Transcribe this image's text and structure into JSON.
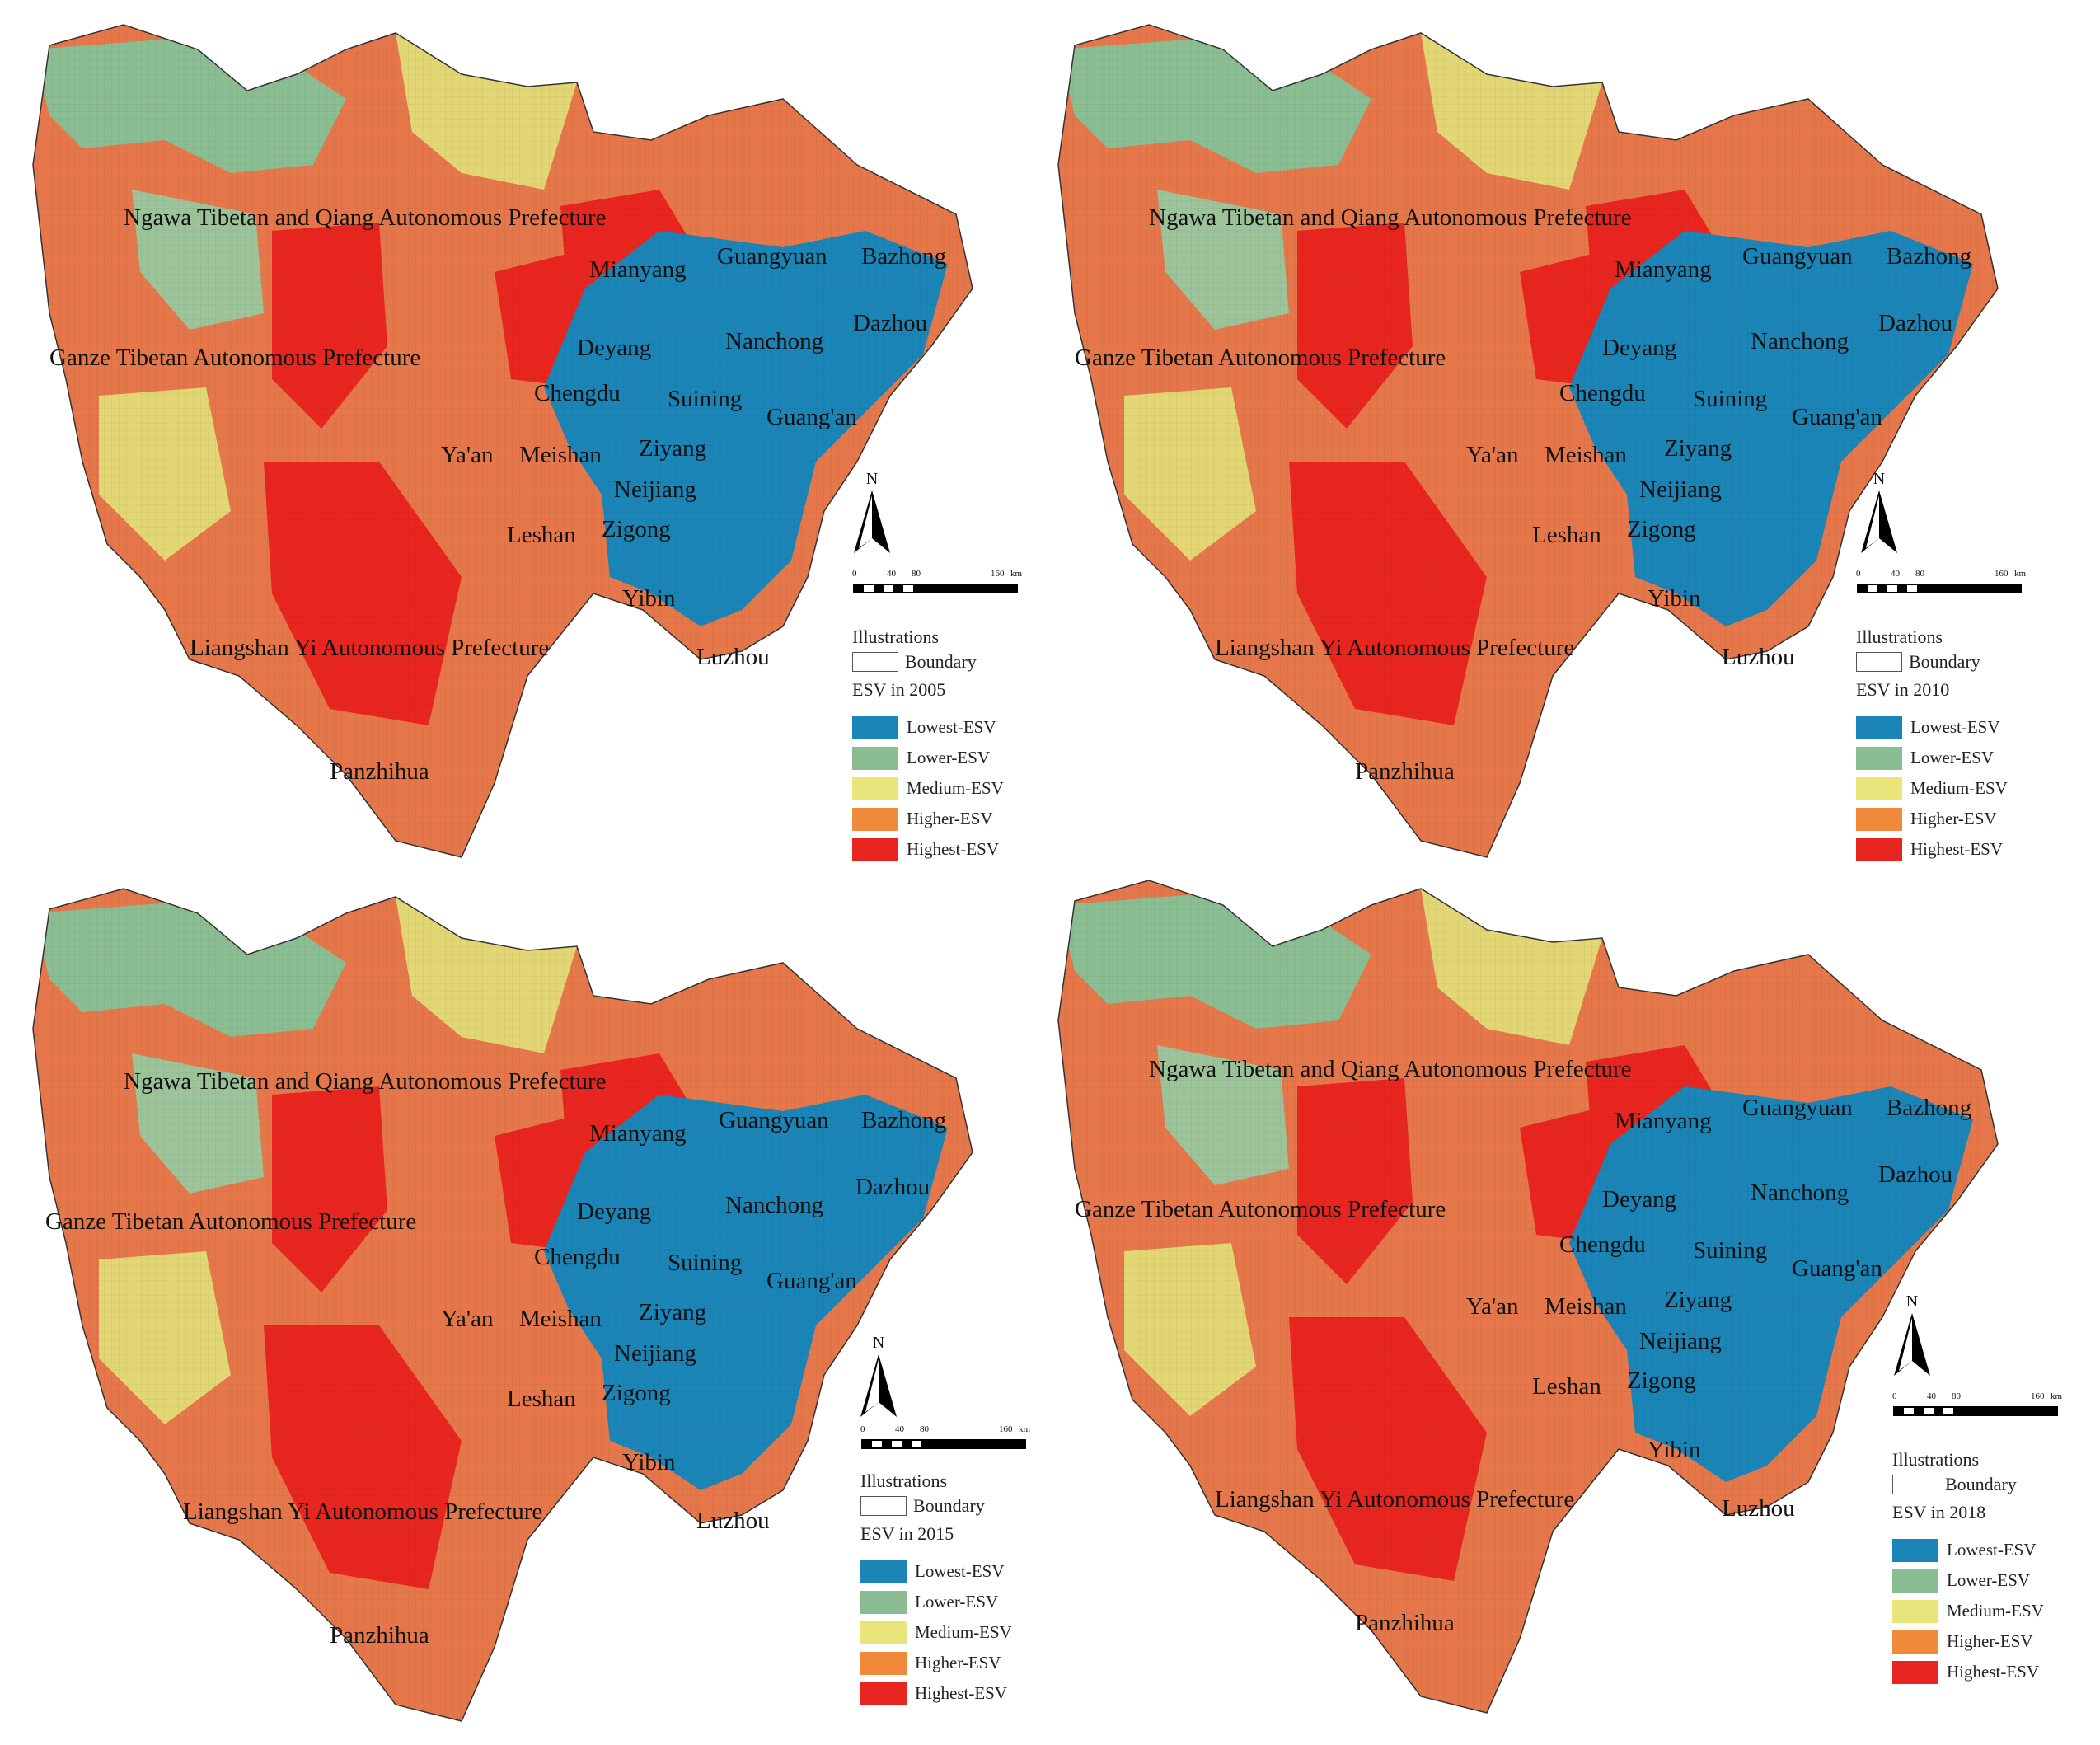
{
  "legend_common": {
    "illustrations": "Illustrations",
    "boundary": "Boundary",
    "north": "N",
    "scale_ticks": [
      "0",
      "40",
      "80",
      "160",
      "km"
    ],
    "classes": [
      {
        "label": "Lowest-ESV",
        "color": "#1a85b6"
      },
      {
        "label": "Lower-ESV",
        "color": "#8bbd92"
      },
      {
        "label": "Medium-ESV",
        "color": "#eae57a"
      },
      {
        "label": "Higher-ESV",
        "color": "#f08a3a"
      },
      {
        "label": "Highest-ESV",
        "color": "#e8261f"
      }
    ]
  },
  "region_labels": [
    "Ngawa Tibetan and Qiang Autonomous Prefecture",
    "Ganze Tibetan Autonomous Prefecture",
    "Liangshan Yi Autonomous Prefecture",
    "Panzhihua",
    "Mianyang",
    "Guangyuan",
    "Bazhong",
    "Dazhou",
    "Deyang",
    "Nanchong",
    "Chengdu",
    "Suining",
    "Guang'an",
    "Ya'an",
    "Meishan",
    "Ziyang",
    "Neijiang",
    "Leshan",
    "Zigong",
    "Yibin",
    "Luzhou"
  ],
  "panels": [
    {
      "year_title": "ESV in 2005"
    },
    {
      "year_title": "ESV in 2010"
    },
    {
      "year_title": "ESV in 2015"
    },
    {
      "year_title": "ESV in 2018"
    }
  ]
}
